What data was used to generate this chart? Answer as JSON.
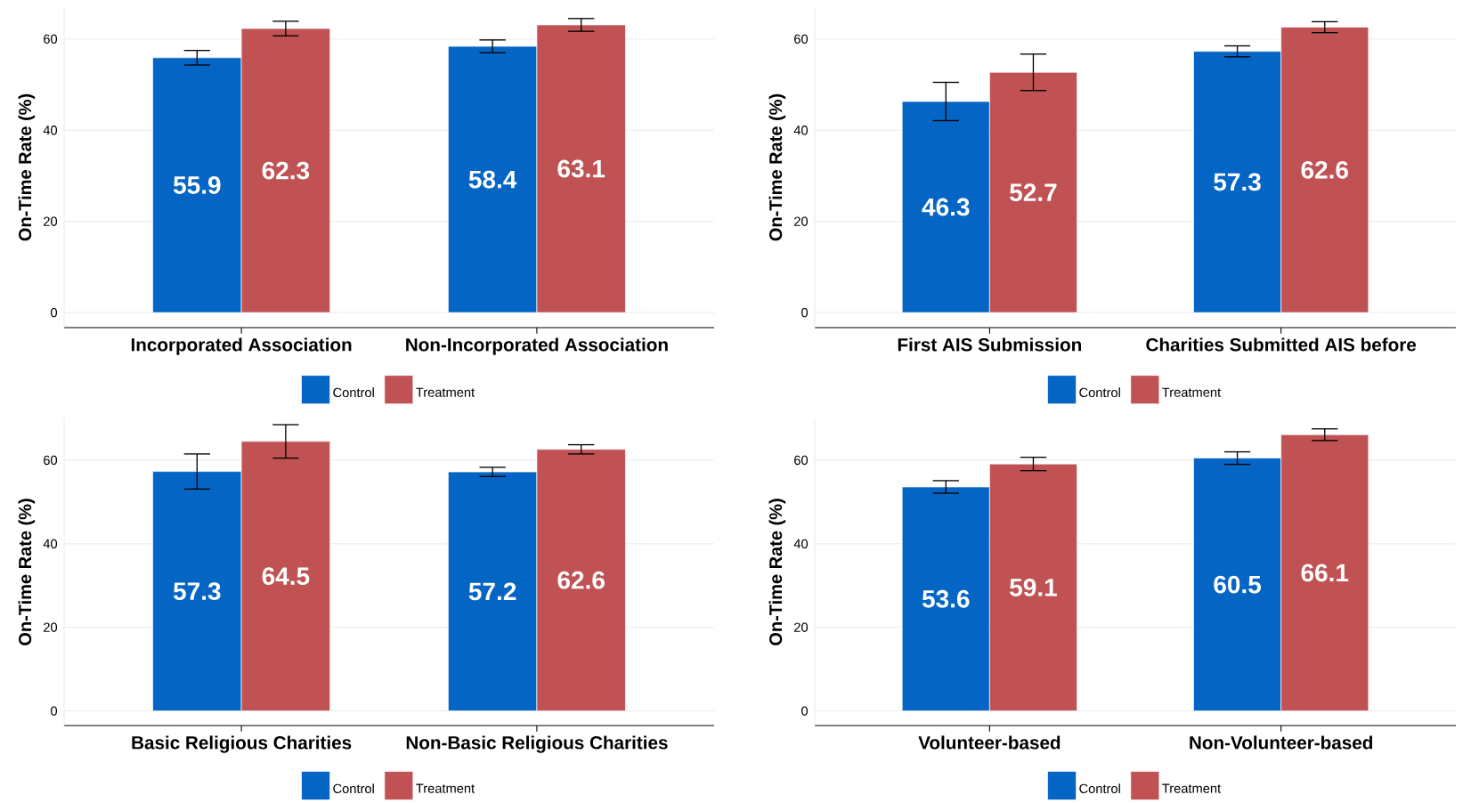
{
  "chart_data": [
    {
      "type": "bar",
      "categories": [
        "Incorporated Association",
        "Non-Incorporated Association"
      ],
      "ylabel": "On-Time Rate (%)",
      "ylim": [
        -3.3,
        67
      ],
      "yticks": [
        0,
        20,
        40,
        60
      ],
      "grid": "y",
      "legend": "bottom",
      "data_labels": true,
      "series": [
        {
          "name": "Control",
          "color": "#0565c4",
          "values": [
            55.9,
            58.4
          ],
          "errors": [
            1.6,
            1.4
          ]
        },
        {
          "name": "Treatment",
          "color": "#c05254",
          "values": [
            62.3,
            63.1
          ],
          "errors": [
            1.6,
            1.4
          ]
        }
      ]
    },
    {
      "type": "bar",
      "categories": [
        "First AIS Submission",
        "Charities Submitted AIS before"
      ],
      "ylabel": "On-Time Rate (%)",
      "ylim": [
        -3.3,
        67
      ],
      "yticks": [
        0,
        20,
        40,
        60
      ],
      "grid": "y",
      "legend": "bottom",
      "data_labels": true,
      "series": [
        {
          "name": "Control",
          "color": "#0565c4",
          "values": [
            46.3,
            57.3
          ],
          "errors": [
            4.2,
            1.2
          ]
        },
        {
          "name": "Treatment",
          "color": "#c05254",
          "values": [
            52.7,
            62.6
          ],
          "errors": [
            4.0,
            1.2
          ]
        }
      ]
    },
    {
      "type": "bar",
      "categories": [
        "Basic Religious Charities",
        "Non-Basic Religious Charities"
      ],
      "ylabel": "On-Time Rate (%)",
      "ylim": [
        -3.5,
        70
      ],
      "yticks": [
        0,
        20,
        40,
        60
      ],
      "grid": "y",
      "legend": "bottom",
      "data_labels": true,
      "series": [
        {
          "name": "Control",
          "color": "#0565c4",
          "values": [
            57.3,
            57.2
          ],
          "errors": [
            4.2,
            1.1
          ]
        },
        {
          "name": "Treatment",
          "color": "#c05254",
          "values": [
            64.5,
            62.6
          ],
          "errors": [
            4.0,
            1.1
          ]
        }
      ]
    },
    {
      "type": "bar",
      "categories": [
        "Volunteer-based",
        "Non-Volunteer-based"
      ],
      "ylabel": "On-Time Rate (%)",
      "ylim": [
        -3.5,
        70
      ],
      "yticks": [
        0,
        20,
        40,
        60
      ],
      "grid": "y",
      "legend": "bottom",
      "data_labels": true,
      "series": [
        {
          "name": "Control",
          "color": "#0565c4",
          "values": [
            53.6,
            60.5
          ],
          "errors": [
            1.5,
            1.5
          ]
        },
        {
          "name": "Treatment",
          "color": "#c05254",
          "values": [
            59.1,
            66.1
          ],
          "errors": [
            1.6,
            1.4
          ]
        }
      ]
    }
  ]
}
